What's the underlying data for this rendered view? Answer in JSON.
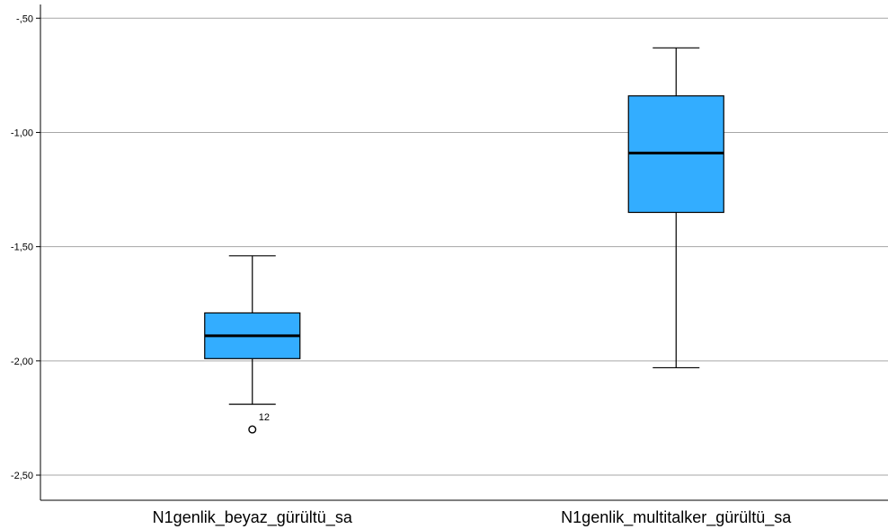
{
  "chart_data": {
    "type": "boxplot",
    "title": "",
    "xlabel": "",
    "ylabel": "",
    "ylim": [
      -2.61,
      -0.44
    ],
    "yticks": [
      -0.5,
      -1.0,
      -1.5,
      -2.0,
      -2.5
    ],
    "ytick_labels": [
      "-,50",
      "-1,00",
      "-1,50",
      "-2,00",
      "-2,50"
    ],
    "grid": true,
    "box_color": "#33adff",
    "categories": [
      "N1genlik_beyaz_gürültü_sa",
      "N1genlik_multitalker_gürültü_sa"
    ],
    "boxes": [
      {
        "category": "N1genlik_beyaz_gürültü_sa",
        "whisker_low": -2.19,
        "q1": -1.99,
        "median": -1.89,
        "q3": -1.79,
        "whisker_high": -1.54,
        "outliers": [
          {
            "value": -2.3,
            "label": "12"
          }
        ]
      },
      {
        "category": "N1genlik_multitalker_gürültü_sa",
        "whisker_low": -2.03,
        "q1": -1.35,
        "median": -1.09,
        "q3": -0.84,
        "whisker_high": -0.63,
        "outliers": []
      }
    ]
  }
}
